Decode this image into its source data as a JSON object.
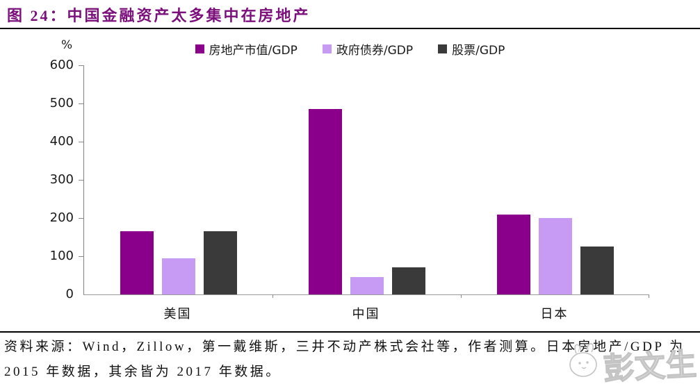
{
  "figure": {
    "label": "图 24：",
    "title": "中国金融资产太多集中在房地产",
    "accent_color": "#7B0F7B"
  },
  "chart_data": {
    "type": "bar",
    "title": "中国金融资产太多集中在房地产",
    "unit_label": "%",
    "categories": [
      "美国",
      "中国",
      "日本"
    ],
    "series": [
      {
        "name": "房地产市值/GDP",
        "color": "#8A008A",
        "values": [
          165,
          485,
          210
        ]
      },
      {
        "name": "政府债券/GDP",
        "color": "#C79AF3",
        "values": [
          95,
          45,
          200
        ]
      },
      {
        "name": "股票/GDP",
        "color": "#3A3A3A",
        "values": [
          165,
          70,
          125
        ]
      }
    ],
    "ylim": [
      0,
      600
    ],
    "ytick_step": 100,
    "grid": false,
    "legend_position": "top"
  },
  "source": {
    "line1": "资料来源：Wind，Zillow，第一戴维斯，三井不动产株式会社等，作者测算。日本房地产/GDP 为",
    "line2": "2015 年数据，其余皆为 2017 年数据。"
  },
  "watermark": {
    "text": "彭文生"
  }
}
